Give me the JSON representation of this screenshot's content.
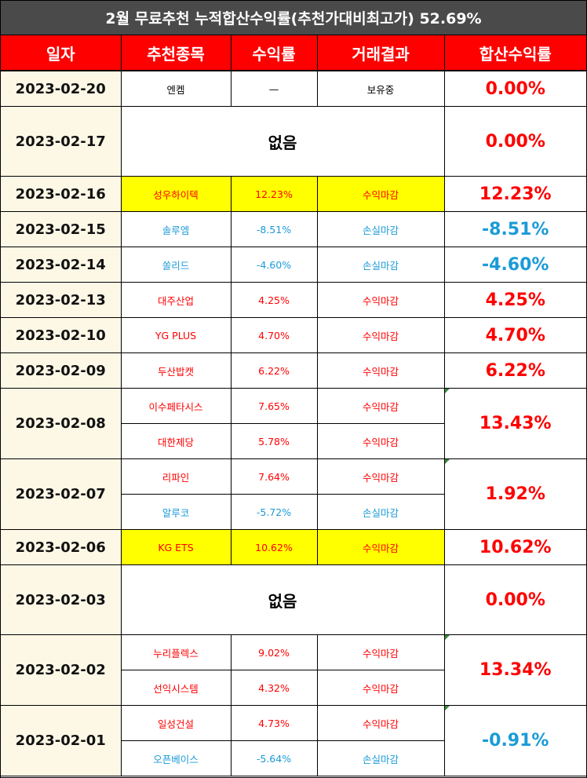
{
  "title": "2월 무료추천 누적합산수익률(추천가대비최고가) 52.69%",
  "headers": [
    "일자",
    "추천종목",
    "수익률",
    "거래결과",
    "합산수익률"
  ],
  "colors": {
    "profit": "#ff0000",
    "loss": "#1a9bd7",
    "header_bg": "#ff0000",
    "title_bg": "#4a4a4a",
    "highlight": "#ffff00",
    "date_bg": "#fdf8e6"
  },
  "groups": [
    {
      "date": "2023-02-20",
      "total": "0.00%",
      "total_tone": "red",
      "none_text": "",
      "items": [
        {
          "name": "엔켐",
          "rate": "—",
          "result": "보유중",
          "tone": "black",
          "highlight": false
        }
      ]
    },
    {
      "date": "2023-02-17",
      "total": "0.00%",
      "total_tone": "red",
      "none_text": "없음",
      "items": []
    },
    {
      "date": "2023-02-16",
      "total": "12.23%",
      "total_tone": "red",
      "none_text": "",
      "items": [
        {
          "name": "성우하이텍",
          "rate": "12.23%",
          "result": "수익마감",
          "tone": "red",
          "highlight": true
        }
      ]
    },
    {
      "date": "2023-02-15",
      "total": "-8.51%",
      "total_tone": "blue",
      "none_text": "",
      "items": [
        {
          "name": "솔루엠",
          "rate": "-8.51%",
          "result": "손실마감",
          "tone": "blue",
          "highlight": false
        }
      ]
    },
    {
      "date": "2023-02-14",
      "total": "-4.60%",
      "total_tone": "blue",
      "none_text": "",
      "items": [
        {
          "name": "쏠리드",
          "rate": "-4.60%",
          "result": "손실마감",
          "tone": "blue",
          "highlight": false
        }
      ]
    },
    {
      "date": "2023-02-13",
      "total": "4.25%",
      "total_tone": "red",
      "none_text": "",
      "items": [
        {
          "name": "대주산업",
          "rate": "4.25%",
          "result": "수익마감",
          "tone": "red",
          "highlight": false
        }
      ]
    },
    {
      "date": "2023-02-10",
      "total": "4.70%",
      "total_tone": "red",
      "none_text": "",
      "items": [
        {
          "name": "YG PLUS",
          "rate": "4.70%",
          "result": "수익마감",
          "tone": "red",
          "highlight": false
        }
      ]
    },
    {
      "date": "2023-02-09",
      "total": "6.22%",
      "total_tone": "red",
      "none_text": "",
      "items": [
        {
          "name": "두산밥캣",
          "rate": "6.22%",
          "result": "수익마감",
          "tone": "red",
          "highlight": false
        }
      ]
    },
    {
      "date": "2023-02-08",
      "total": "13.43%",
      "total_tone": "red",
      "none_text": "",
      "items": [
        {
          "name": "이수페타시스",
          "rate": "7.65%",
          "result": "수익마감",
          "tone": "red",
          "highlight": false
        },
        {
          "name": "대한제당",
          "rate": "5.78%",
          "result": "수익마감",
          "tone": "red",
          "highlight": false
        }
      ]
    },
    {
      "date": "2023-02-07",
      "total": "1.92%",
      "total_tone": "red",
      "none_text": "",
      "items": [
        {
          "name": "리파인",
          "rate": "7.64%",
          "result": "수익마감",
          "tone": "red",
          "highlight": false
        },
        {
          "name": "알루코",
          "rate": "-5.72%",
          "result": "손실마감",
          "tone": "blue",
          "highlight": false
        }
      ]
    },
    {
      "date": "2023-02-06",
      "total": "10.62%",
      "total_tone": "red",
      "none_text": "",
      "items": [
        {
          "name": "KG ETS",
          "rate": "10.62%",
          "result": "수익마감",
          "tone": "red",
          "highlight": true
        }
      ]
    },
    {
      "date": "2023-02-03",
      "total": "0.00%",
      "total_tone": "red",
      "none_text": "없음",
      "items": []
    },
    {
      "date": "2023-02-02",
      "total": "13.34%",
      "total_tone": "red",
      "none_text": "",
      "items": [
        {
          "name": "누리플렉스",
          "rate": "9.02%",
          "result": "수익마감",
          "tone": "red",
          "highlight": false
        },
        {
          "name": "선익시스템",
          "rate": "4.32%",
          "result": "수익마감",
          "tone": "red",
          "highlight": false
        }
      ]
    },
    {
      "date": "2023-02-01",
      "total": "-0.91%",
      "total_tone": "blue",
      "none_text": "",
      "items": [
        {
          "name": "일성건설",
          "rate": "4.73%",
          "result": "수익마감",
          "tone": "red",
          "highlight": false
        },
        {
          "name": "오픈베이스",
          "rate": "-5.64%",
          "result": "손실마감",
          "tone": "blue",
          "highlight": false
        }
      ]
    }
  ]
}
